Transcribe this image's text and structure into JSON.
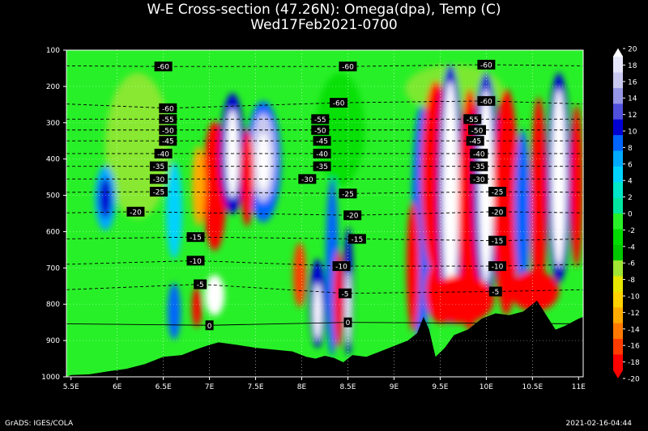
{
  "title_line1": "W-E Cross-section (47.26N): Omega(dpa), Temp (C)",
  "title_line2": "Wed17Feb2021-0700",
  "footer_left": "GrADS: IGES/COLA",
  "footer_right": "2021-02-16-04:44",
  "chart_data": {
    "type": "heatmap",
    "title": "W-E Cross-section (47.26N): Omega(dpa), Temp (C)",
    "subtitle": "Wed17Feb2021-0700",
    "x_ticks": [
      "5.5E",
      "6E",
      "6.5E",
      "7E",
      "7.5E",
      "8E",
      "8.5E",
      "9E",
      "9.5E",
      "10E",
      "10.5E",
      "11E"
    ],
    "x_values": [
      5.5,
      6,
      6.5,
      7,
      7.5,
      8,
      8.5,
      9,
      9.5,
      10,
      10.5,
      11
    ],
    "y_ticks": [
      "100",
      "200",
      "300",
      "400",
      "500",
      "600",
      "700",
      "800",
      "900",
      "1000"
    ],
    "y_values": [
      100,
      200,
      300,
      400,
      500,
      600,
      700,
      800,
      900,
      1000
    ],
    "xlim": [
      5.45,
      11.05
    ],
    "ylim": [
      1000,
      100
    ],
    "colorbar_labels": [
      "20",
      "18",
      "16",
      "14",
      "12",
      "10",
      "8",
      "6",
      "4",
      "2",
      "0",
      "-2",
      "-4",
      "-6",
      "-8",
      "-10",
      "-12",
      "-14",
      "-16",
      "-18",
      "-20"
    ],
    "colorbar_colors": [
      "#ffffff",
      "#e6e6fa",
      "#c8c8f0",
      "#9696e6",
      "#5050dc",
      "#0000d2",
      "#0064ff",
      "#00aaff",
      "#00d2ff",
      "#00e6c8",
      "#00e6a0",
      "#28f028",
      "#00dc00",
      "#00c800",
      "#a0e632",
      "#e6e600",
      "#ffd200",
      "#ffaa00",
      "#ff7800",
      "#ff3c00",
      "#ff0000"
    ],
    "temp_contours": [
      {
        "label": "-60",
        "x": 6.5,
        "p": 145
      },
      {
        "label": "-60",
        "x": 8.5,
        "p": 145
      },
      {
        "label": "-60",
        "x": 10.0,
        "p": 140
      },
      {
        "label": "-60",
        "x": 6.55,
        "p": 260
      },
      {
        "label": "-60",
        "x": 8.4,
        "p": 245
      },
      {
        "label": "-60",
        "x": 10.0,
        "p": 240
      },
      {
        "label": "-55",
        "x": 6.55,
        "p": 290
      },
      {
        "label": "-55",
        "x": 8.2,
        "p": 290
      },
      {
        "label": "-55",
        "x": 9.85,
        "p": 290
      },
      {
        "label": "-50",
        "x": 6.55,
        "p": 320
      },
      {
        "label": "-50",
        "x": 8.2,
        "p": 320
      },
      {
        "label": "-50",
        "x": 9.9,
        "p": 320
      },
      {
        "label": "-45",
        "x": 6.55,
        "p": 350
      },
      {
        "label": "-45",
        "x": 8.22,
        "p": 350
      },
      {
        "label": "-45",
        "x": 9.88,
        "p": 350
      },
      {
        "label": "-40",
        "x": 6.5,
        "p": 385
      },
      {
        "label": "-40",
        "x": 8.22,
        "p": 385
      },
      {
        "label": "-40",
        "x": 9.92,
        "p": 385
      },
      {
        "label": "-35",
        "x": 6.45,
        "p": 420
      },
      {
        "label": "-35",
        "x": 8.22,
        "p": 420
      },
      {
        "label": "-35",
        "x": 9.92,
        "p": 420
      },
      {
        "label": "-30",
        "x": 6.45,
        "p": 455
      },
      {
        "label": "-30",
        "x": 8.06,
        "p": 455
      },
      {
        "label": "-30",
        "x": 9.92,
        "p": 455
      },
      {
        "label": "-25",
        "x": 6.45,
        "p": 490
      },
      {
        "label": "-25",
        "x": 8.5,
        "p": 495
      },
      {
        "label": "-25",
        "x": 10.12,
        "p": 490
      },
      {
        "label": "-20",
        "x": 6.2,
        "p": 545
      },
      {
        "label": "-20",
        "x": 8.55,
        "p": 555
      },
      {
        "label": "-20",
        "x": 10.12,
        "p": 545
      },
      {
        "label": "-15",
        "x": 6.85,
        "p": 615
      },
      {
        "label": "-15",
        "x": 8.6,
        "p": 620
      },
      {
        "label": "-15",
        "x": 10.12,
        "p": 625
      },
      {
        "label": "-10",
        "x": 6.85,
        "p": 680
      },
      {
        "label": "-10",
        "x": 8.43,
        "p": 695
      },
      {
        "label": "-10",
        "x": 10.12,
        "p": 695
      },
      {
        "label": "-5",
        "x": 6.9,
        "p": 745
      },
      {
        "label": "-5",
        "x": 8.47,
        "p": 770
      },
      {
        "label": "-5",
        "x": 10.1,
        "p": 765
      },
      {
        "label": "0",
        "x": 7.0,
        "p": 858
      },
      {
        "label": "0",
        "x": 8.5,
        "p": 850
      }
    ],
    "terrain": [
      [
        5.45,
        1000
      ],
      [
        5.5,
        995
      ],
      [
        5.7,
        993
      ],
      [
        5.9,
        985
      ],
      [
        6.1,
        978
      ],
      [
        6.3,
        965
      ],
      [
        6.5,
        945
      ],
      [
        6.7,
        940
      ],
      [
        6.85,
        925
      ],
      [
        7.0,
        912
      ],
      [
        7.1,
        905
      ],
      [
        7.3,
        912
      ],
      [
        7.5,
        920
      ],
      [
        7.7,
        925
      ],
      [
        7.9,
        930
      ],
      [
        8.05,
        945
      ],
      [
        8.15,
        950
      ],
      [
        8.25,
        942
      ],
      [
        8.35,
        948
      ],
      [
        8.45,
        960
      ],
      [
        8.55,
        940
      ],
      [
        8.7,
        945
      ],
      [
        8.85,
        930
      ],
      [
        9.0,
        915
      ],
      [
        9.15,
        900
      ],
      [
        9.25,
        880
      ],
      [
        9.32,
        835
      ],
      [
        9.38,
        870
      ],
      [
        9.45,
        945
      ],
      [
        9.55,
        920
      ],
      [
        9.65,
        885
      ],
      [
        9.8,
        870
      ],
      [
        9.95,
        840
      ],
      [
        10.1,
        825
      ],
      [
        10.25,
        830
      ],
      [
        10.4,
        820
      ],
      [
        10.55,
        790
      ],
      [
        10.65,
        830
      ],
      [
        10.75,
        870
      ],
      [
        10.85,
        860
      ],
      [
        11.0,
        840
      ],
      [
        11.05,
        835
      ]
    ]
  }
}
